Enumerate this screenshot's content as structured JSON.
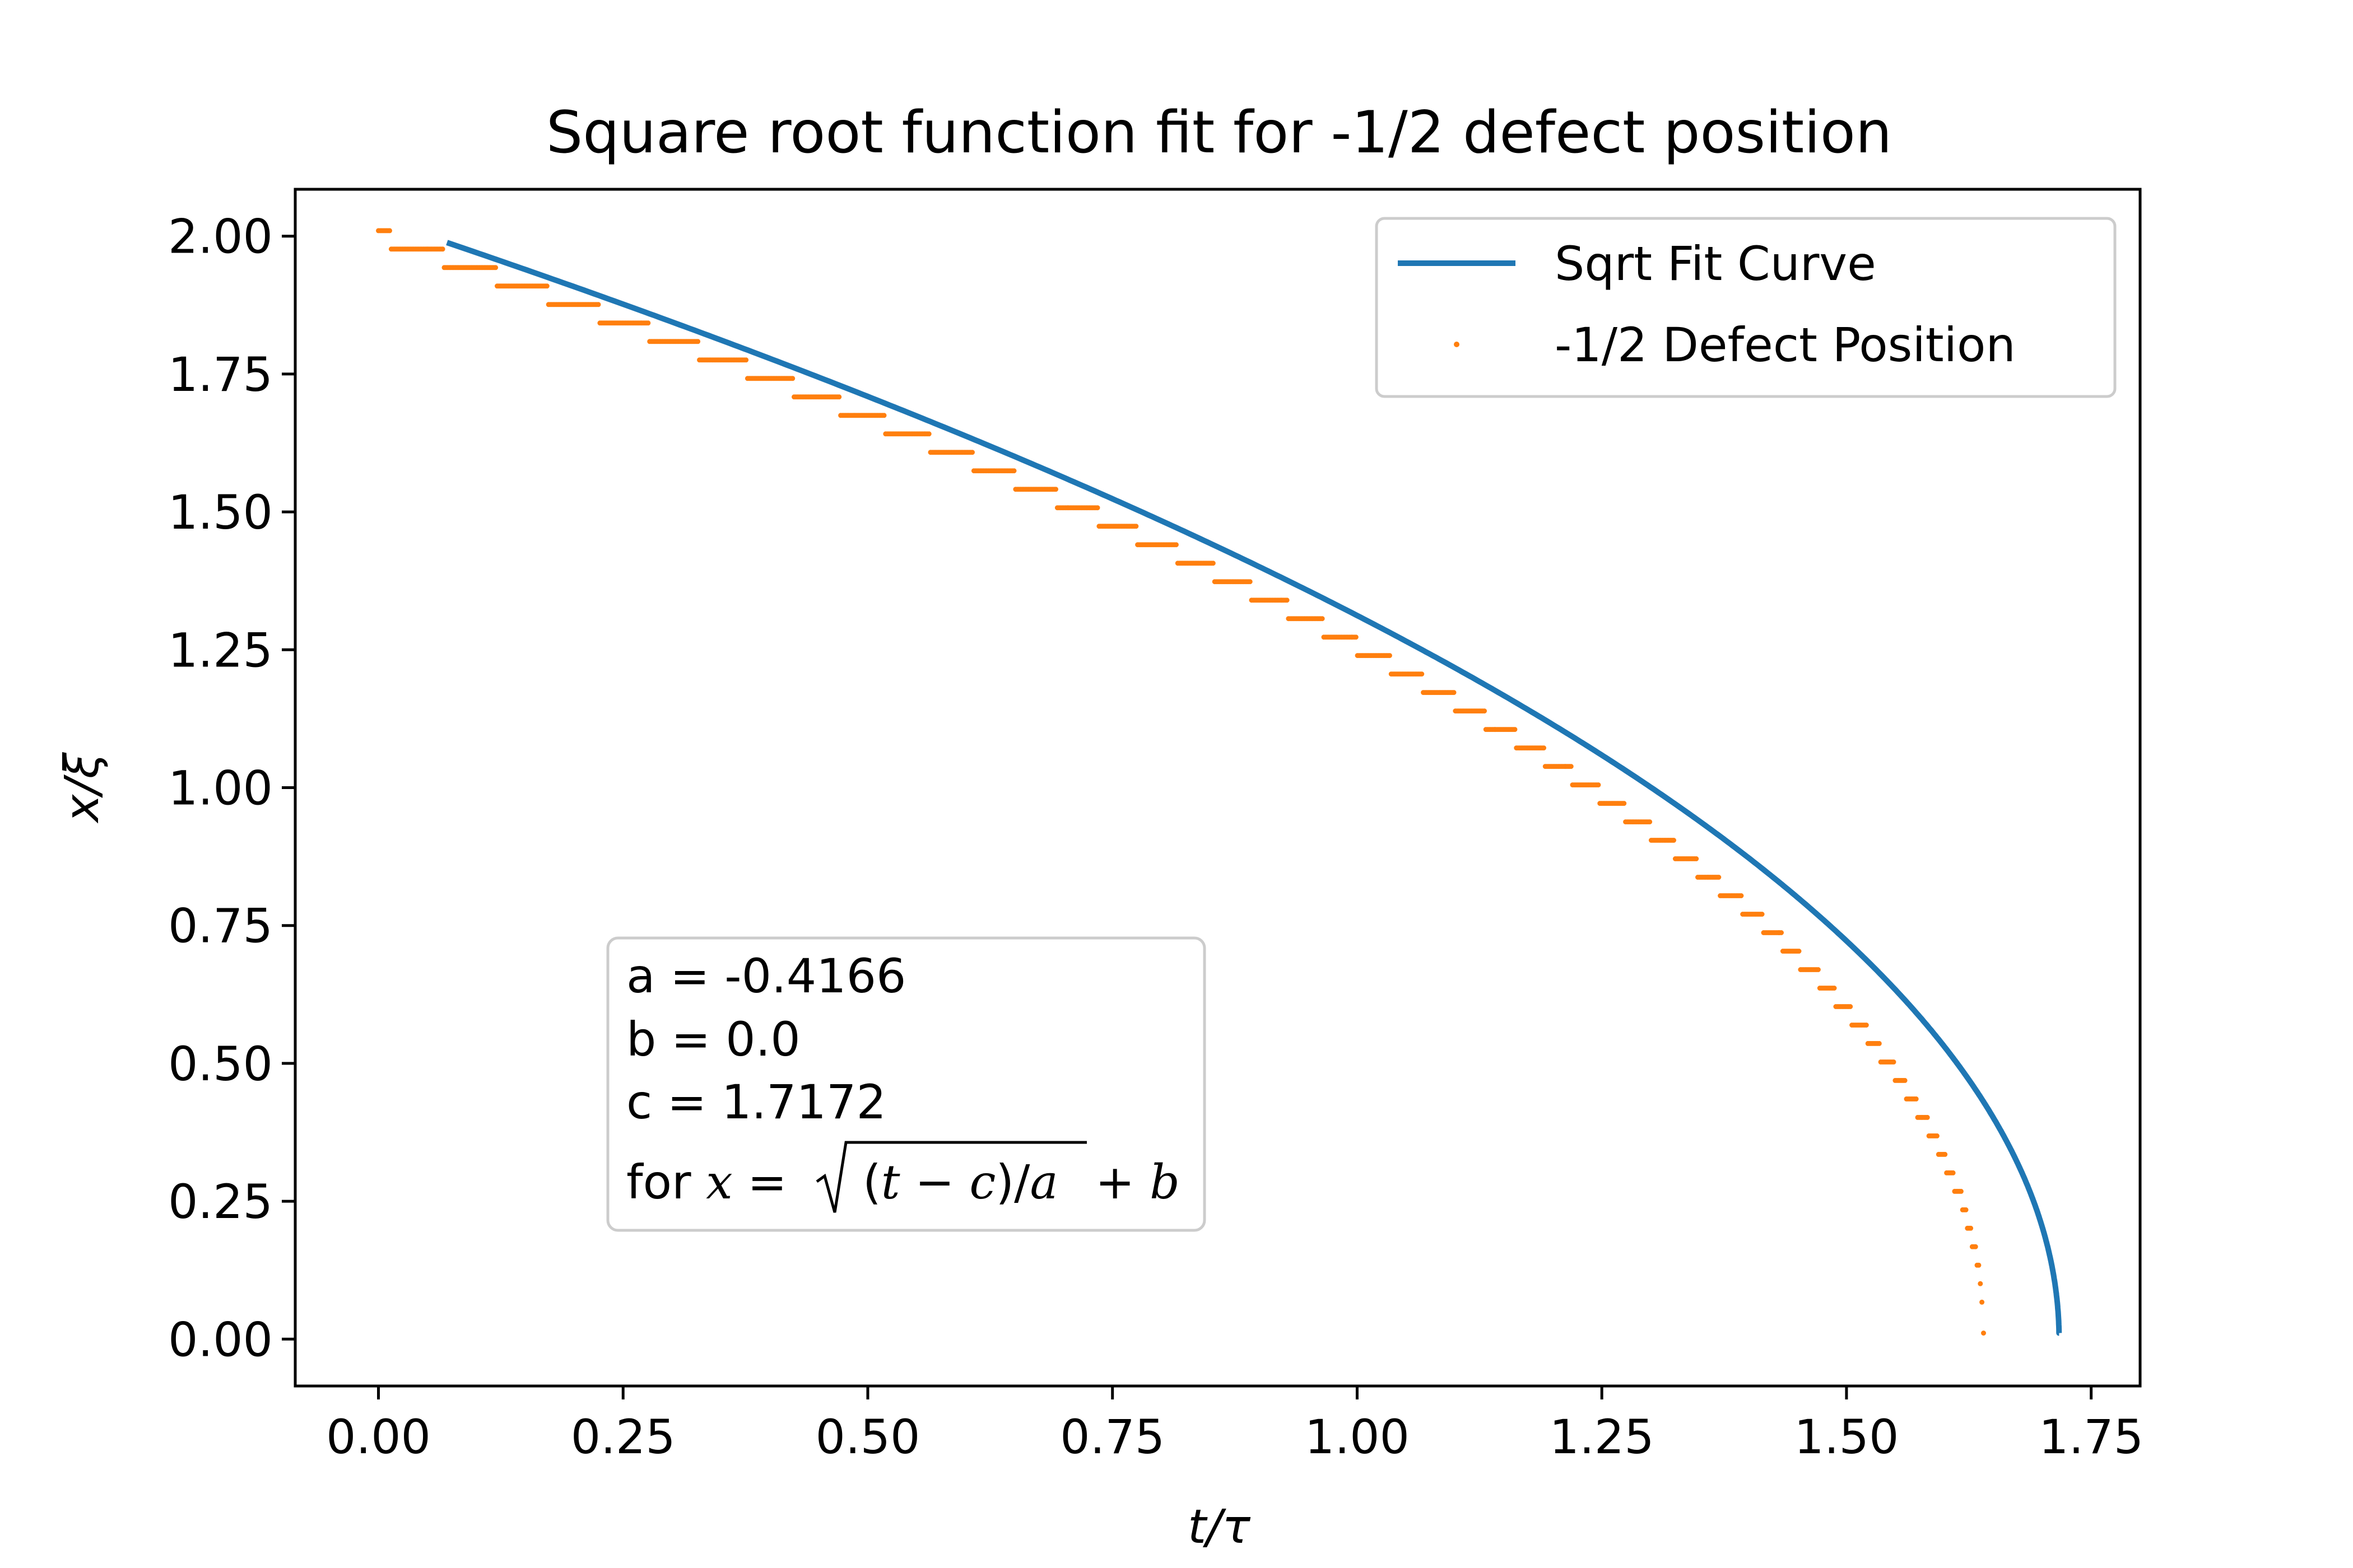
{
  "chart_data": {
    "type": "line",
    "title": "Square root function fit for -1/2 defect position",
    "xlabel": "t/τ",
    "ylabel": "x/ξ",
    "xlim": [
      -0.085,
      1.8
    ],
    "ylim": [
      -0.085,
      2.085
    ],
    "xticks": [
      "0.00",
      "0.25",
      "0.50",
      "0.75",
      "1.00",
      "1.25",
      "1.50",
      "1.75"
    ],
    "yticks": [
      "0.00",
      "0.25",
      "0.50",
      "0.75",
      "1.00",
      "1.25",
      "1.50",
      "1.75",
      "2.00"
    ],
    "grid": false,
    "legend_position": "top-right",
    "fit": {
      "a": -0.4166,
      "b": 0.0,
      "c": 1.7172,
      "x_start": 0.07
    },
    "series": [
      {
        "name": "Sqrt Fit Curve",
        "kind": "line",
        "color": "#1f77b4"
      },
      {
        "name": "-1/2 Defect Position",
        "kind": "points",
        "color": "#ff7f0e",
        "x_end": 1.64,
        "step": 0.0335
      }
    ],
    "annotation": {
      "lines": [
        "a = -0.4166",
        "b = 0.0",
        "c = 1.7172"
      ],
      "formula_prefix": "for "
    }
  }
}
